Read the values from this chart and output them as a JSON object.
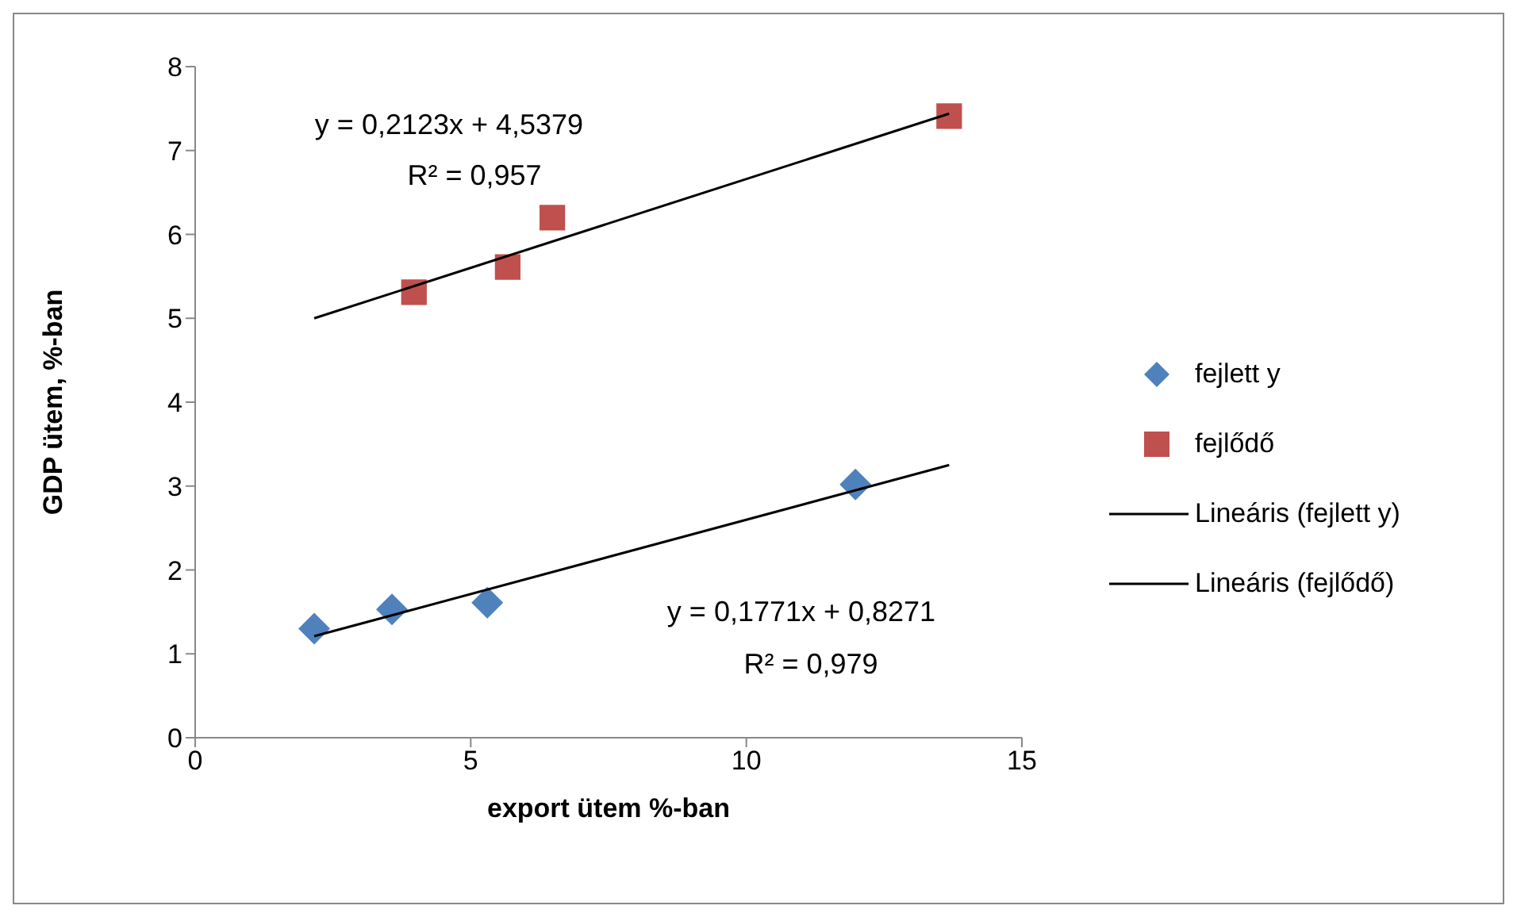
{
  "chart_data": {
    "type": "scatter",
    "xlabel": "export ütem %-ban",
    "ylabel": "GDP ütem, %-ban",
    "xlim": [
      0,
      15
    ],
    "xticks": [
      0,
      5,
      10,
      15
    ],
    "ylim": [
      0,
      8
    ],
    "yticks": [
      0,
      1,
      2,
      3,
      4,
      5,
      6,
      7,
      8
    ],
    "grid": false,
    "legend": "right",
    "series": [
      {
        "name": "fejlett y",
        "type": "scatter",
        "marker": "diamond",
        "color": "#4f81bd",
        "x": [
          2.16,
          3.57,
          5.3,
          11.98
        ],
        "values": [
          1.3,
          1.53,
          1.61,
          3.02
        ]
      },
      {
        "name": "fejlődő",
        "type": "scatter",
        "marker": "square",
        "color": "#c0504d",
        "x": [
          3.97,
          5.67,
          6.48,
          13.68
        ],
        "values": [
          5.31,
          5.61,
          6.2,
          7.41
        ]
      },
      {
        "name": "Lineáris (fejlett y)",
        "type": "line",
        "marker": "none",
        "color": "#000000",
        "x": [
          2.16,
          13.68
        ],
        "values": [
          1.21,
          3.25
        ]
      },
      {
        "name": "Lineáris (fejlődő)",
        "type": "line",
        "marker": "none",
        "color": "#000000",
        "x": [
          2.16,
          13.68
        ],
        "values": [
          5.0,
          7.44
        ]
      }
    ],
    "annotations": [
      "y = 0,2123x + 4,5379",
      "R² = 0,957",
      "y = 0,1771x + 0,8271",
      "R² = 0,979"
    ]
  }
}
